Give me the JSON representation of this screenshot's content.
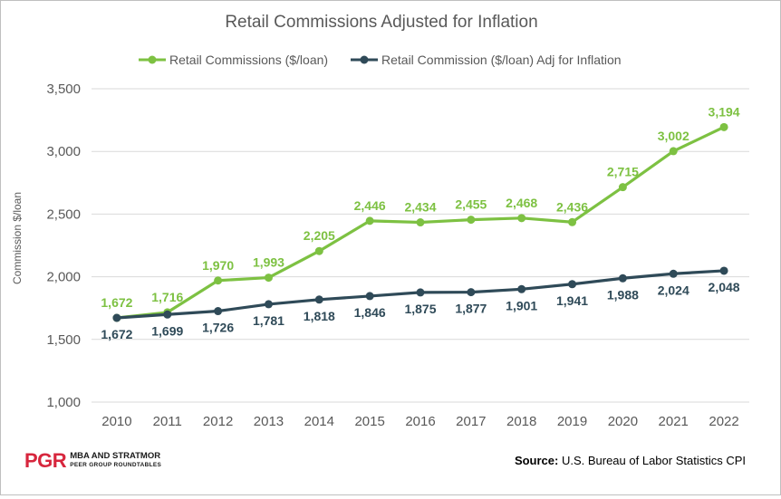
{
  "colors": {
    "series1": "#7dc142",
    "series2": "#2f4a58",
    "grid": "#d9d9d9",
    "axis_text": "#595959",
    "logo_red": "#d7263d"
  },
  "logo": {
    "mark": "PGR",
    "line1": "MBA AND STRATMOR",
    "line2": "PEER GROUP ROUNDTABLES"
  },
  "source": {
    "label": "Source:",
    "text": " U.S. Bureau of Labor Statistics CPI"
  },
  "chart_data": {
    "type": "line",
    "title": "Retail Commissions Adjusted for Inflation",
    "xlabel": "",
    "ylabel": "Commission $/loan",
    "ylim": [
      1000,
      3500
    ],
    "yticks": [
      1000,
      1500,
      2000,
      2500,
      3000,
      3500
    ],
    "ytick_labels": [
      "1,000",
      "1,500",
      "2,000",
      "2,500",
      "3,000",
      "3,500"
    ],
    "grid": true,
    "legend_position": "top",
    "categories": [
      "2010",
      "2011",
      "2012",
      "2013",
      "2014",
      "2015",
      "2016",
      "2017",
      "2018",
      "2019",
      "2020",
      "2021",
      "2022"
    ],
    "series": [
      {
        "name": "Retail Commissions ($/loan)",
        "color": "#7dc142",
        "label_position": "above",
        "values": [
          1672,
          1716,
          1970,
          1993,
          2205,
          2446,
          2434,
          2455,
          2468,
          2436,
          2715,
          3002,
          3194
        ],
        "labels": [
          "1,672",
          "1,716",
          "1,970",
          "1,993",
          "2,205",
          "2,446",
          "2,434",
          "2,455",
          "2,468",
          "2,436",
          "2,715",
          "3,002",
          "3,194"
        ]
      },
      {
        "name": "Retail Commission ($/loan) Adj for Inflation",
        "color": "#2f4a58",
        "label_position": "below",
        "values": [
          1672,
          1699,
          1726,
          1781,
          1818,
          1846,
          1875,
          1877,
          1901,
          1941,
          1988,
          2024,
          2048
        ],
        "labels": [
          "1,672",
          "1,699",
          "1,726",
          "1,781",
          "1,818",
          "1,846",
          "1,875",
          "1,877",
          "1,901",
          "1,941",
          "1,988",
          "2,024",
          "2,048"
        ]
      }
    ]
  }
}
